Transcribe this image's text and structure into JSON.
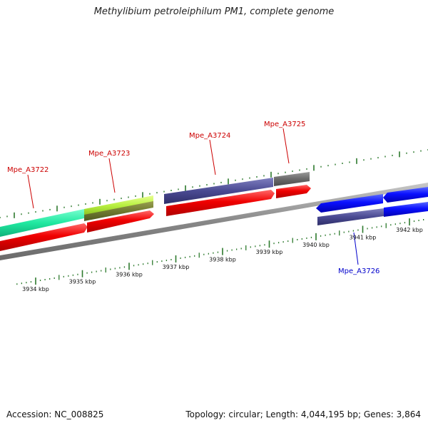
{
  "title": "Methylibium petroleiphilum PM1, complete genome",
  "footer": {
    "accession": "Accession: NC_008825",
    "summary": "Topology: circular; Length: 4,044,195 bp; Genes: 3,864"
  },
  "colors": {
    "label_red": "#cc0000",
    "label_blue": "#0000cc",
    "tick_green": "#2d7a2d",
    "backbone": "#909090"
  },
  "scale_labels": [
    {
      "text": "3934 kbp",
      "kbp": 3934
    },
    {
      "text": "3935 kbp",
      "kbp": 3935
    },
    {
      "text": "3936 kbp",
      "kbp": 3936
    },
    {
      "text": "3937 kbp",
      "kbp": 3937
    },
    {
      "text": "3938 kbp",
      "kbp": 3938
    },
    {
      "text": "3939 kbp",
      "kbp": 3939
    },
    {
      "text": "3940 kbp",
      "kbp": 3940
    },
    {
      "text": "3941 kbp",
      "kbp": 3941
    },
    {
      "text": "3942 kbp",
      "kbp": 3942
    }
  ],
  "genes": [
    {
      "name": "Mpe_A3722",
      "color": "#cc0000"
    },
    {
      "name": "Mpe_A3723",
      "color": "#cc0000"
    },
    {
      "name": "Mpe_A3724",
      "color": "#cc0000"
    },
    {
      "name": "Mpe_A3725",
      "color": "#cc0000"
    },
    {
      "name": "Mpe_A3726",
      "color": "#0000cc"
    }
  ]
}
